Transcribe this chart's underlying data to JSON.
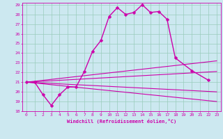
{
  "xlabel": "Windchill (Refroidissement éolien,°C)",
  "background_color": "#cce8f0",
  "grid_color": "#99ccbb",
  "line_color": "#cc00aa",
  "xlim": [
    -0.5,
    23.5
  ],
  "ylim": [
    18,
    29.2
  ],
  "xticks": [
    0,
    1,
    2,
    3,
    4,
    5,
    6,
    7,
    8,
    9,
    10,
    11,
    12,
    13,
    14,
    15,
    16,
    17,
    18,
    19,
    20,
    21,
    22,
    23
  ],
  "yticks": [
    18,
    19,
    20,
    21,
    22,
    23,
    24,
    25,
    26,
    27,
    28,
    29
  ],
  "main_series": {
    "x": [
      0,
      1,
      2,
      3,
      4,
      5,
      6,
      7,
      8,
      9,
      10,
      11,
      12,
      13,
      14,
      15,
      16,
      17,
      18,
      20,
      22
    ],
    "y": [
      21.0,
      21.0,
      19.7,
      18.6,
      19.7,
      20.5,
      20.5,
      22.1,
      24.2,
      25.3,
      27.8,
      28.7,
      28.0,
      28.2,
      29.0,
      28.2,
      28.3,
      27.5,
      23.5,
      22.2,
      21.2
    ],
    "markersize": 2.5,
    "linewidth": 1.0
  },
  "ref_lines": [
    {
      "x0": 0,
      "y0": 21.0,
      "x1": 23,
      "y1": 23.2
    },
    {
      "x0": 0,
      "y0": 21.0,
      "x1": 23,
      "y1": 22.1
    },
    {
      "x0": 0,
      "y0": 21.0,
      "x1": 23,
      "y1": 20.0
    },
    {
      "x0": 0,
      "y0": 21.0,
      "x1": 23,
      "y1": 19.0
    }
  ]
}
